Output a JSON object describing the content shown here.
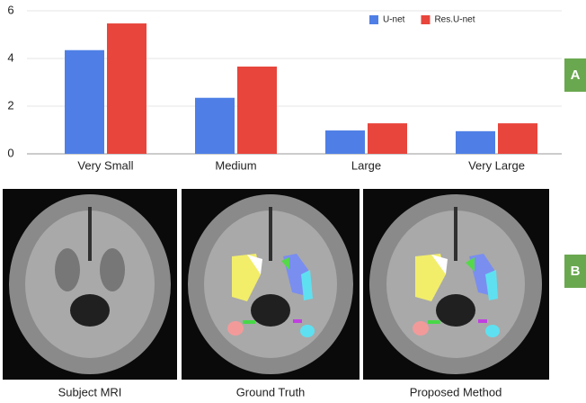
{
  "chart_data": {
    "type": "bar",
    "categories": [
      "Very Small",
      "Medium",
      "Large",
      "Very Large"
    ],
    "series": [
      {
        "name": "U-net",
        "color": "#4f7fe6",
        "values": [
          4.35,
          2.35,
          0.98,
          0.95
        ]
      },
      {
        "name": "Res.U-net",
        "color": "#e8453c",
        "values": [
          5.47,
          3.66,
          1.28,
          1.28
        ]
      }
    ],
    "ylim": [
      0,
      6
    ],
    "yticks": [
      0,
      2,
      4,
      6
    ],
    "grid": true,
    "legend": "top-right"
  },
  "panel_labels": [
    "A",
    "B"
  ],
  "figure_b": {
    "captions": [
      "Subject MRI",
      "Ground Truth",
      "Proposed Method"
    ]
  }
}
